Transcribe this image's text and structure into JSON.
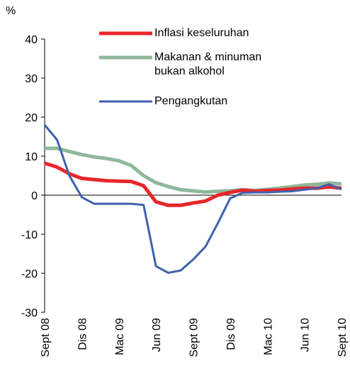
{
  "chart_data": {
    "type": "line",
    "y_label": "%",
    "categories": [
      "Sept 08",
      null,
      null,
      "Dis 08",
      null,
      null,
      "Mac 09",
      null,
      null,
      "Jun 09",
      null,
      null,
      "Sept 09",
      null,
      null,
      "Dis 09",
      null,
      null,
      "Mac 10",
      null,
      null,
      "Jun 10",
      null,
      null,
      "Sept 10"
    ],
    "ylim": [
      -30,
      40
    ],
    "yticks": [
      -30,
      -20,
      -10,
      0,
      10,
      20,
      30,
      40
    ],
    "series": [
      {
        "name": "Inflasi keseluruhan",
        "color": "#e8262a",
        "values": [
          8.2,
          7.2,
          5.5,
          4.3,
          4.0,
          3.7,
          3.6,
          3.5,
          2.4,
          -1.7,
          -2.6,
          -2.6,
          -2.0,
          -1.5,
          0.0,
          0.7,
          1.3,
          1.0,
          1.2,
          1.3,
          1.6,
          1.8,
          1.8,
          2.1,
          1.8
        ]
      },
      {
        "name": "Makanan & minuman bukan alkohol",
        "color": "#8fb89a",
        "values": [
          12.0,
          12.0,
          11.2,
          10.4,
          9.8,
          9.4,
          8.8,
          7.6,
          5.0,
          3.2,
          2.2,
          1.4,
          1.1,
          0.8,
          1.0,
          1.1,
          1.4,
          1.2,
          1.5,
          1.8,
          2.2,
          2.6,
          2.8,
          3.1,
          2.9
        ]
      },
      {
        "name": "Pengangkutan",
        "color": "#4061ad",
        "values": [
          18.0,
          14.2,
          5.0,
          -0.5,
          -2.2,
          -2.2,
          -2.2,
          -2.2,
          -2.5,
          -18.2,
          -19.9,
          -19.3,
          -16.5,
          -13.2,
          -7.2,
          -0.8,
          0.6,
          0.7,
          0.7,
          0.9,
          1.0,
          1.4,
          1.8,
          2.8,
          1.5
        ]
      }
    ]
  }
}
